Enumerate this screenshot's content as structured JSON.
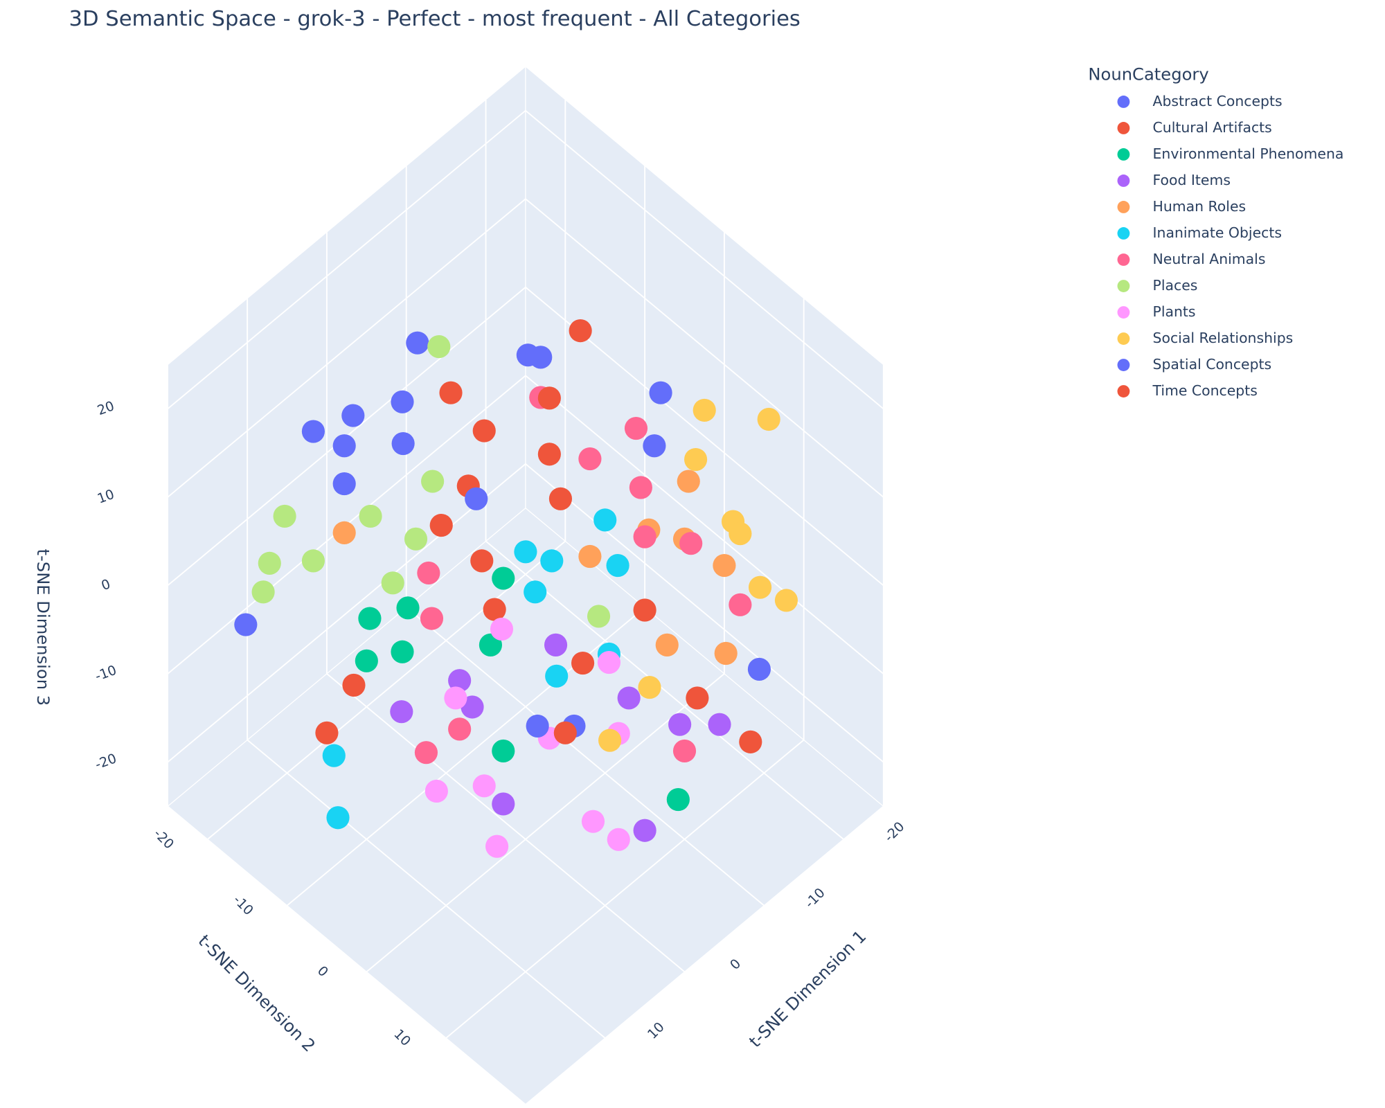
{
  "chart_data": {
    "type": "scatter3d",
    "title": "3D Semantic Space - grok-3 - Perfect - most frequent - All Categories",
    "x_label": "t-SNE Dimension 1",
    "y_label": "t-SNE Dimension 2",
    "z_label": "t-SNE Dimension 3",
    "legend_title": "NounCategory",
    "legend_position": "right",
    "grid": true,
    "xlim": [
      -25,
      20
    ],
    "ylim": [
      -25,
      20
    ],
    "zlim": [
      -25,
      25
    ],
    "xticks": [
      -20,
      -10,
      0,
      10
    ],
    "yticks": [
      -20,
      -10,
      0,
      10
    ],
    "zticks": [
      -20,
      -10,
      0,
      10,
      20
    ],
    "series": [
      {
        "name": "Abstract Concepts",
        "color": "#636efa",
        "x": [
          -3.6,
          6.3,
          3.2,
          -0.4,
          4.9,
          6.3,
          1.1,
          17.8,
          -17,
          -10.8
        ],
        "y": [
          -17.2,
          -20.4,
          -18.5,
          -15.9,
          -17.9,
          -16.5,
          -14.3,
          -17.4,
          0,
          -8.9
        ],
        "z": [
          15.6,
          10.6,
          11.5,
          12.3,
          9.8,
          7.6,
          9.9,
          -0.4,
          12.8,
          14.8
        ]
      },
      {
        "name": "Cultural Artifacts",
        "color": "#ef553b",
        "x": [
          -14.3,
          -3.8,
          -4.5,
          -1.4,
          1.8,
          0.6,
          1.6,
          -7.8,
          13.3,
          16.8,
          -9.5,
          -7.8
        ],
        "y": [
          -7.4,
          -13.2,
          -9.7,
          -8.6,
          -8.8,
          -4.9,
          -2.3,
          7.2,
          -8.3,
          -8.2,
          18.8,
          13.8
        ],
        "z": [
          16.3,
          12.8,
          10.6,
          7.5,
          5.3,
          3.3,
          0.5,
          0.5,
          -3.8,
          -6.5,
          -7,
          -4.5
        ]
      },
      {
        "name": "Environmental Phenomena",
        "color": "#00cc96",
        "x": [
          9.8,
          7,
          11.6,
          9,
          -0.1,
          3.2,
          6.4,
          -2.8
        ],
        "y": [
          -9.8,
          -7.8,
          -8.4,
          -6.5,
          -2.9,
          -1.2,
          3.6,
          16.4
        ],
        "z": [
          0,
          0.6,
          -2.4,
          -1.9,
          2.3,
          -1.5,
          -7.5,
          -10.3
        ]
      },
      {
        "name": "Food Items",
        "color": "#ab63fa",
        "x": [
          6.5,
          6.7,
          11.3,
          -0.9,
          -3.5,
          -5.7,
          -8.2,
          8.4,
          0.5
        ],
        "y": [
          -1.8,
          0,
          -4.3,
          2.9,
          9.5,
          13.7,
          16.2,
          5.6,
          15.5
        ],
        "z": [
          -3.5,
          -5,
          -5.3,
          -1.5,
          -4.5,
          -6,
          -6,
          -10.5,
          -12
        ]
      },
      {
        "name": "Human Roles",
        "color": "#ffa15a",
        "x": [
          -15.4,
          -11.1,
          -6.4,
          -13,
          -14.5,
          -7.9,
          -11.3,
          8.2
        ],
        "y": [
          5.1,
          4.4,
          1.7,
          7,
          10.5,
          9.9,
          13.9,
          -14.6
        ],
        "z": [
          7.8,
          5,
          3.5,
          4.5,
          3,
          -1.5,
          -2,
          4.9
        ]
      },
      {
        "name": "Inanimate Objects",
        "color": "#19d3f3",
        "x": [
          -8.7,
          -2.5,
          -3.8,
          -7.8,
          -1.6,
          0.2,
          17.2,
          19.3,
          -3.9
        ],
        "y": [
          1.3,
          -2.5,
          -0.5,
          3.8,
          -0.4,
          4.1,
          -6.9,
          -4.3,
          6.6
        ],
        "z": [
          5.6,
          3.8,
          3.3,
          3,
          1.5,
          -3.3,
          -7.8,
          -11.3,
          -2
        ]
      },
      {
        "name": "Neutral Animals",
        "color": "#ff6692",
        "x": [
          -9.3,
          -14.1,
          -10.1,
          -12.2,
          -10.6,
          -13.2,
          4.4,
          5.9,
          -14,
          8.3,
          11.3,
          -5
        ],
        "y": [
          -7.4,
          -0.2,
          -2,
          2.3,
          4.4,
          7.6,
          -7.8,
          -5.9,
          13,
          0,
          -1.2,
          15
        ],
        "z": [
          12.5,
          10.8,
          9,
          7.4,
          4.6,
          4.3,
          2.6,
          0,
          0.8,
          -6.3,
          -7.6,
          -7.5
        ]
      },
      {
        "name": "Places",
        "color": "#b6e880",
        "x": [
          -4.8,
          0.7,
          11.3,
          5.9,
          14,
          11.2,
          15.5,
          3.9,
          7,
          -4.7
        ],
        "y": [
          -15.7,
          -11,
          -19,
          -13.6,
          -18.2,
          -15.5,
          -17.5,
          -9.9,
          -9.7,
          4.5
        ],
        "z": [
          15.4,
          7.8,
          5.8,
          5.8,
          3.1,
          3.3,
          1.5,
          4.5,
          2,
          0.1
        ]
      },
      {
        "name": "Plants",
        "color": "#ff97ff",
        "x": [
          1.9,
          -3.6,
          3,
          -1.5,
          7.4,
          12.1,
          8.9,
          10.4,
          3.4,
          2.5
        ],
        "y": [
          -1.1,
          6.9,
          6,
          10.2,
          -1.4,
          0.9,
          3.7,
          6.8,
          11.9,
          14.2
        ],
        "z": [
          -0.6,
          -2.5,
          -6.8,
          -6.5,
          -4.5,
          -9.8,
          -9.5,
          -12.9,
          -11.5,
          -12.5
        ]
      },
      {
        "name": "Social Relationships",
        "color": "#fecb52",
        "x": [
          -19.1,
          -22.8,
          -16.7,
          -16.7,
          -16.7,
          -15.9,
          -17.1,
          -5.2,
          -0.7
        ],
        "y": [
          3.4,
          7.8,
          4.7,
          9.4,
          10.3,
          13.6,
          15.7,
          10.4,
          9.9
        ],
        "z": [
          11.8,
          11.3,
          9,
          5.5,
          4.8,
          1.8,
          1,
          -3.9,
          -6.9
        ]
      },
      {
        "name": "Spatial Concepts",
        "color": "#636efa",
        "x": [
          -12.8,
          3.3,
          -10.1,
          -14.6,
          -1.4,
          1
        ],
        "y": [
          16.6,
          4.8,
          -9.8,
          1.6,
          -7.6,
          7.1
        ],
        "z": [
          -2.9,
          -6.1,
          14.9,
          9.8,
          6.8,
          -6.1
        ]
      },
      {
        "name": "Time Concepts",
        "color": "#ef553b",
        "x": [
          -9.8,
          -6.7,
          -1.9,
          1.8,
          -7.7
        ],
        "y": [
          -6.8,
          -2.3,
          5.3,
          6.8,
          -4.7
        ],
        "z": [
          12.5,
          6.8,
          -2.5,
          -6.5,
          9.3
        ]
      }
    ]
  }
}
